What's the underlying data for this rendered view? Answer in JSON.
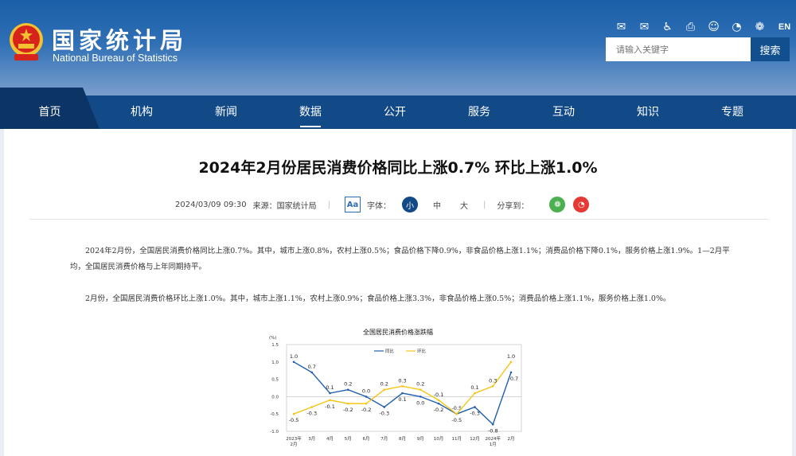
{
  "header": {
    "logo_cn": "国家统计局",
    "logo_en": "National Bureau of Statistics",
    "icons": [
      "mail-icon",
      "mail-settings-icon",
      "accessibility-icon",
      "print-icon",
      "robot-icon",
      "weibo-icon",
      "wechat-icon"
    ],
    "lang": "EN",
    "search_placeholder": "请输入关键字",
    "search_button": "搜索"
  },
  "nav": {
    "items": [
      "首页",
      "机构",
      "新闻",
      "数据",
      "公开",
      "服务",
      "互动",
      "知识",
      "专题"
    ],
    "active": "首页",
    "current": "数据"
  },
  "article": {
    "title": "2024年2月份居民消费价格同比上涨0.7% 环比上涨1.0%",
    "date": "2024/03/09 09:30",
    "source": "来源：国家统计局",
    "font_label": "字体：",
    "font_small": "小",
    "font_medium": "中",
    "font_large": "大",
    "share_label": "分享到：",
    "aa": "Aa",
    "p1": "2024年2月份，全国居民消费价格同比上涨0.7%。其中，城市上涨0.8%，农村上涨0.5%；食品价格下降0.9%，非食品价格上涨1.1%；消费品价格下降0.1%，服务价格上涨1.9%。1—2月平均，全国居民消费价格与上年同期持平。",
    "p2": "2月份，全国居民消费价格环比上涨1.0%。其中，城市上涨1.1%，农村上涨0.9%；食品价格上涨3.3%，非食品价格上涨0.5%；消费品价格上涨1.1%，服务价格上涨1.0%。"
  },
  "colors": {
    "nav": "#124a88",
    "accent": "#114f8f",
    "yoy": "#1f5fae",
    "mom": "#f5c518",
    "wechat": "#4caf50",
    "weibo": "#e53935"
  },
  "chart_data": {
    "type": "line",
    "title": "全国居民消费价格涨跌幅",
    "ylabel": "(%)",
    "ylim": [
      -1.0,
      1.5
    ],
    "yticks": [
      "-1.0",
      "-0.5",
      "0.0",
      "0.5",
      "1.0",
      "1.5"
    ],
    "categories": [
      [
        "2023年",
        "2月"
      ],
      [
        "3月"
      ],
      [
        "4月"
      ],
      [
        "5月"
      ],
      [
        "6月"
      ],
      [
        "7月"
      ],
      [
        "8月"
      ],
      [
        "9月"
      ],
      [
        "10月"
      ],
      [
        "11月"
      ],
      [
        "12月"
      ],
      [
        "2024年",
        "1月"
      ],
      [
        "2月"
      ]
    ],
    "legend_position": "top-center",
    "grid": false,
    "series": [
      {
        "name": "同比",
        "values": [
          1.0,
          0.7,
          0.1,
          0.2,
          0.0,
          -0.3,
          0.1,
          0.0,
          -0.2,
          -0.5,
          -0.3,
          -0.8,
          0.7
        ]
      },
      {
        "name": "环比",
        "values": [
          -0.5,
          -0.3,
          -0.1,
          -0.2,
          -0.2,
          0.2,
          0.3,
          0.2,
          -0.1,
          -0.5,
          0.1,
          0.3,
          1.0
        ]
      }
    ]
  }
}
